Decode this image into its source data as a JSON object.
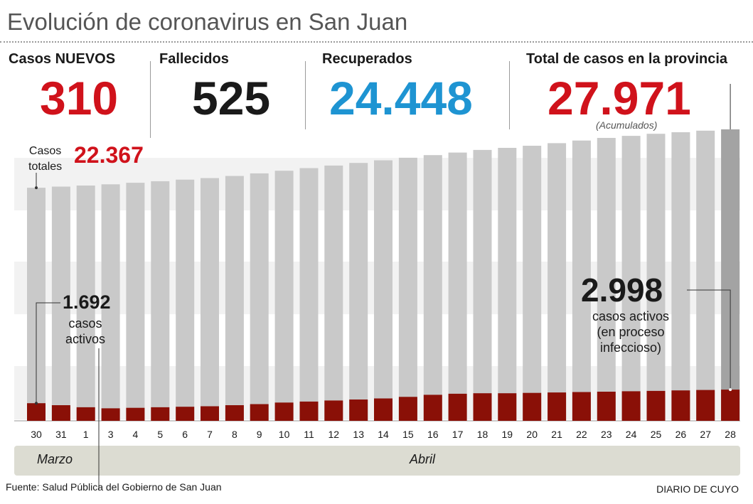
{
  "title": "Evolución de coronavirus en San Juan",
  "stats": {
    "nuevos": {
      "label": "Casos NUEVOS",
      "value": "310"
    },
    "fallecidos": {
      "label": "Fallecidos",
      "value": "525"
    },
    "recuperados": {
      "label": "Recuperados",
      "value": "24.448"
    },
    "total": {
      "label": "Total de casos en la provincia",
      "value": "27.971",
      "note": "(Acumulados)"
    }
  },
  "colors": {
    "red": "#d0121b",
    "black": "#1a1a1a",
    "blue": "#1e94d2",
    "bar_total": "#c9c9c9",
    "bar_total_last": "#a3a3a3",
    "bar_active": "#8a1007",
    "band": "#f2f2f2",
    "month_band": "#dcdcd2"
  },
  "annotations": {
    "casos_totales_label": "Casos\ntotales",
    "casos_totales_value": "22.367",
    "first_active_value": "1.692",
    "first_active_label": "casos\nactivos",
    "last_active_value": "2.998",
    "last_active_label": "casos activos\n(en proceso\ninfeccioso)"
  },
  "months": {
    "march": "Marzo",
    "april": "Abril"
  },
  "footer": {
    "source": "Fuente: Salud Pública del Gobierno de San Juan",
    "brand": "DIARIO DE CUYO"
  },
  "chart_data": {
    "type": "bar",
    "title": "Evolución de coronavirus en San Juan",
    "xlabel": "",
    "ylabel": "",
    "categories": [
      "30",
      "31",
      "1",
      "3",
      "4",
      "5",
      "6",
      "7",
      "8",
      "9",
      "10",
      "11",
      "12",
      "13",
      "14",
      "15",
      "16",
      "17",
      "18",
      "19",
      "20",
      "21",
      "22",
      "23",
      "24",
      "25",
      "26",
      "27",
      "28"
    ],
    "series": [
      {
        "name": "Casos totales",
        "values": [
          22367,
          22480,
          22580,
          22700,
          22850,
          23000,
          23150,
          23300,
          23500,
          23750,
          24000,
          24250,
          24500,
          24750,
          25000,
          25250,
          25500,
          25750,
          26000,
          26200,
          26400,
          26650,
          26900,
          27150,
          27350,
          27550,
          27700,
          27850,
          27971
        ]
      },
      {
        "name": "Casos activos",
        "values": [
          1692,
          1500,
          1300,
          1200,
          1250,
          1300,
          1350,
          1400,
          1500,
          1600,
          1750,
          1850,
          1950,
          2050,
          2150,
          2300,
          2500,
          2600,
          2650,
          2650,
          2680,
          2720,
          2760,
          2800,
          2840,
          2870,
          2920,
          2960,
          2998
        ]
      }
    ],
    "ylim": [
      0,
      29000
    ]
  }
}
